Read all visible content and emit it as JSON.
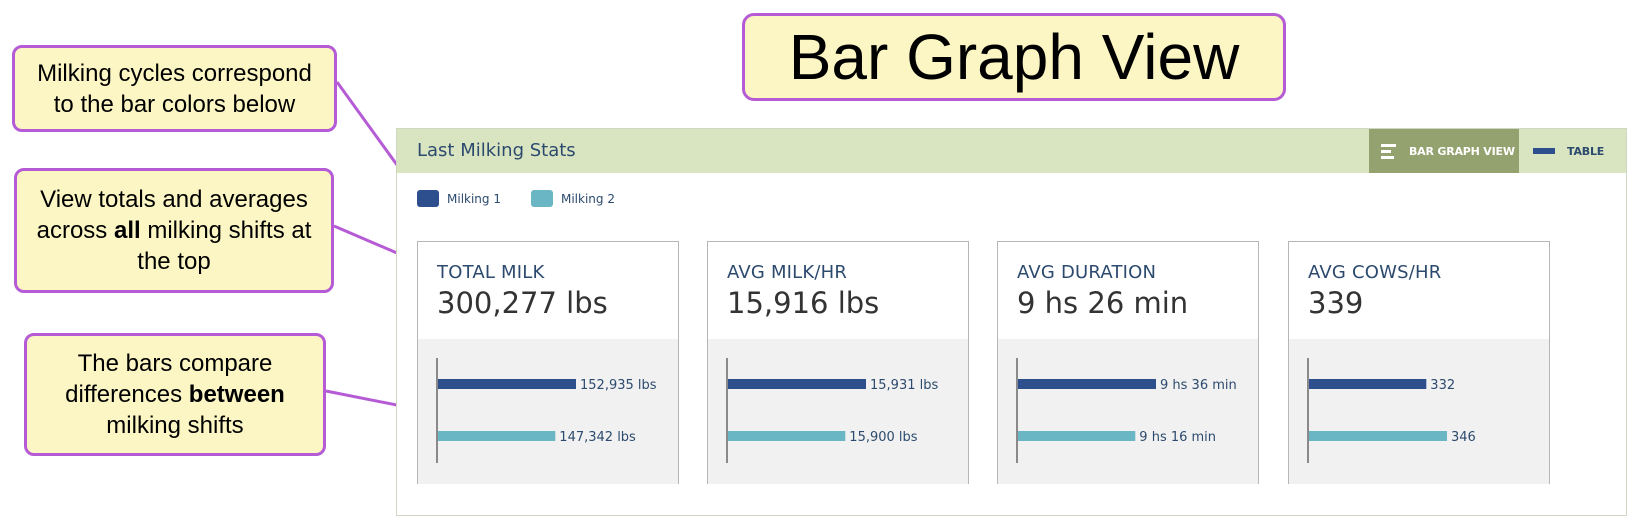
{
  "title": "Bar Graph View",
  "callouts": {
    "cycles": {
      "line1": "Milking cycles correspond",
      "line2": "to the bar colors below"
    },
    "totals": {
      "line1": "View totals and averages",
      "line2a": "across ",
      "line2b": "all",
      "line2c": " milking shifts at",
      "line3": "the top"
    },
    "bars": {
      "line1": "The bars compare",
      "line2a": "differences ",
      "line2b": "between",
      "line3": "milking shifts"
    }
  },
  "panel": {
    "title": "Last Milking Stats",
    "view_buttons": {
      "bar_graph": "BAR GRAPH VIEW",
      "table": "TABLE"
    },
    "legend": [
      {
        "label": "Milking 1",
        "color": "#2e4f8e"
      },
      {
        "label": "Milking 2",
        "color": "#6ab6c4"
      }
    ]
  },
  "chart_data": [
    {
      "type": "bar",
      "title": "TOTAL MILK",
      "headline": "300,277 lbs",
      "series": [
        "Milking 1",
        "Milking 2"
      ],
      "values": [
        152935,
        147342
      ],
      "value_labels": [
        "152,935 lbs",
        "147,342 lbs"
      ]
    },
    {
      "type": "bar",
      "title": "AVG MILK/HR",
      "headline": "15,916 lbs",
      "series": [
        "Milking 1",
        "Milking 2"
      ],
      "values": [
        15931,
        15900
      ],
      "value_labels": [
        "15,931 lbs",
        "15,900 lbs"
      ]
    },
    {
      "type": "bar",
      "title": "AVG DURATION",
      "headline": "9 hs 26 min",
      "series": [
        "Milking 1",
        "Milking 2"
      ],
      "values": [
        576,
        556
      ],
      "value_labels": [
        "9 hs 36 min",
        "9 hs 16 min"
      ]
    },
    {
      "type": "bar",
      "title": "AVG COWS/HR",
      "headline": "339",
      "series": [
        "Milking 1",
        "Milking 2"
      ],
      "values": [
        332,
        346
      ],
      "value_labels": [
        "332",
        "346"
      ]
    }
  ]
}
